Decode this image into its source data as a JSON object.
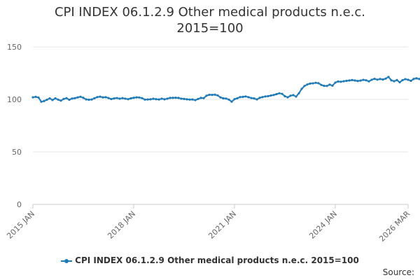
{
  "title": {
    "line1": "CPI INDEX 06.1.2.9 Other medical products n.e.c.",
    "line2": "2015=100"
  },
  "legend": {
    "label": "CPI INDEX 06.1.2.9 Other medical products n.e.c. 2015=100"
  },
  "footer": {
    "source": "Source:"
  },
  "colors": {
    "series": "#1f7ab8",
    "grid": "#e6e6e6",
    "axis": "#cccccc",
    "text": "#333333"
  },
  "chart_data": {
    "type": "line",
    "title": "CPI INDEX 06.1.2.9 Other medical products n.e.c. 2015=100",
    "xlabel": "",
    "ylabel": "",
    "ylim": [
      0,
      150
    ],
    "yticks": [
      0,
      50,
      100,
      150
    ],
    "xlim": [
      "2015-01",
      "2026-03"
    ],
    "xtick_labels": [
      "2015 JAN",
      "2018 JAN",
      "2021 JAN",
      "2024 JAN",
      "2026 MAR"
    ],
    "grid": true,
    "legend_position": "bottom",
    "series": [
      {
        "name": "CPI INDEX 06.1.2.9 Other medical products n.e.c. 2015=100",
        "x_start": "2015-01",
        "frequency": "monthly",
        "values": [
          102.0,
          102.4,
          101.8,
          97.8,
          98.4,
          99.7,
          100.9,
          99.4,
          101.0,
          99.8,
          98.8,
          100.4,
          101.2,
          99.7,
          100.8,
          101.2,
          101.9,
          102.5,
          101.5,
          100.0,
          99.7,
          99.9,
          101.1,
          102.2,
          102.6,
          101.9,
          102.1,
          101.3,
          100.3,
          100.9,
          101.3,
          100.7,
          101.2,
          100.7,
          100.2,
          101.0,
          101.5,
          101.9,
          101.8,
          101.2,
          99.8,
          99.9,
          100.1,
          100.6,
          100.2,
          99.9,
          100.7,
          100.1,
          100.7,
          101.4,
          101.5,
          101.6,
          101.4,
          100.7,
          100.4,
          100.1,
          99.8,
          99.9,
          99.3,
          100.4,
          101.4,
          101.2,
          103.5,
          104.4,
          104.3,
          104.5,
          103.8,
          101.9,
          101.0,
          100.8,
          99.8,
          97.8,
          100.2,
          101.1,
          102.2,
          102.4,
          102.8,
          102.1,
          101.3,
          100.9,
          100.0,
          101.5,
          102.2,
          102.8,
          103.1,
          103.7,
          104.2,
          105.0,
          105.8,
          105.3,
          103.0,
          102.0,
          103.5,
          104.1,
          102.7,
          105.8,
          110.0,
          112.8,
          114.2,
          115.1,
          115.3,
          115.8,
          115.4,
          113.8,
          112.9,
          112.8,
          114.1,
          113.1,
          116.0,
          117.1,
          116.8,
          117.3,
          117.7,
          118.0,
          118.4,
          118.0,
          117.5,
          117.9,
          118.6,
          118.2,
          117.2,
          118.7,
          119.6,
          118.8,
          119.4,
          118.9,
          119.8,
          121.4,
          118.2,
          117.3,
          118.4,
          116.3,
          118.3,
          119.3,
          118.7,
          117.7,
          119.5,
          120.1,
          119.4,
          119.8,
          120.3,
          118.9,
          116.6
        ]
      }
    ]
  }
}
